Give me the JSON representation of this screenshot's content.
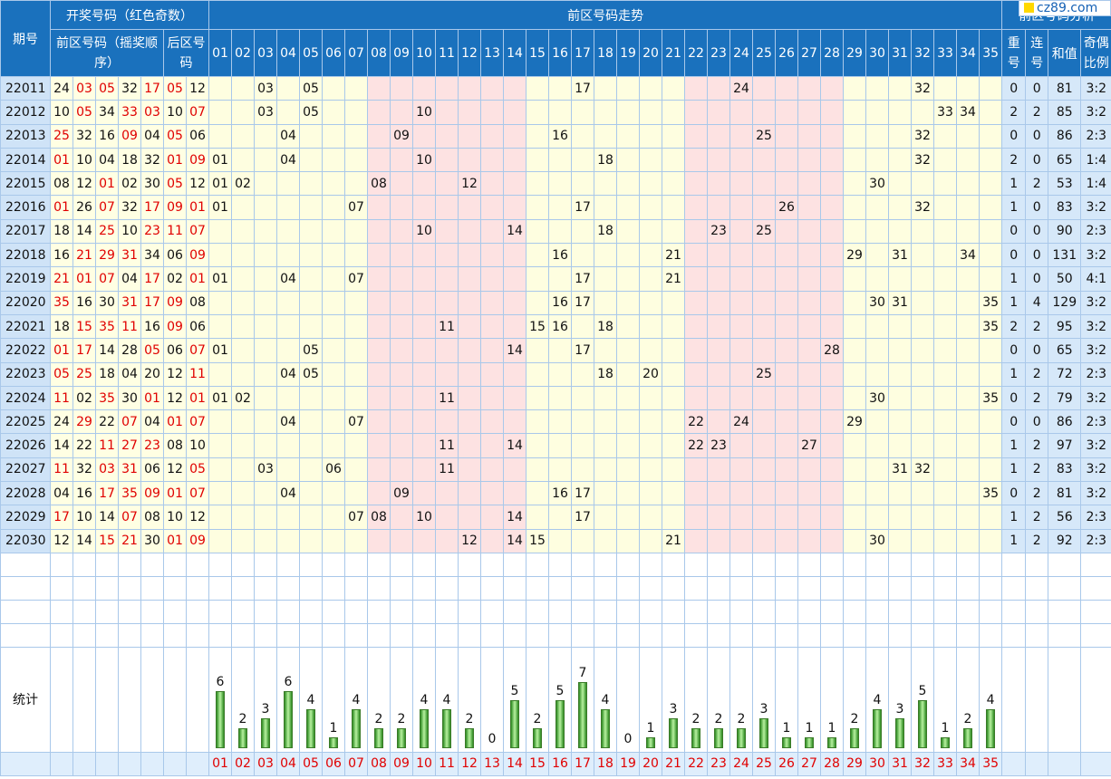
{
  "header": {
    "period": "期号",
    "draw_group": "开奖号码（红色奇数）",
    "front_sub": "前区号码（摇奖顺序）",
    "back_sub": "后区号码",
    "trend": "前区号码走势",
    "analysis": "前区号码分析",
    "repeat": "重号",
    "consecutive": "连号",
    "sum": "和值",
    "odd_even": "奇偶比例"
  },
  "columns": [
    "01",
    "02",
    "03",
    "04",
    "05",
    "06",
    "07",
    "08",
    "09",
    "10",
    "11",
    "12",
    "13",
    "14",
    "15",
    "16",
    "17",
    "18",
    "19",
    "20",
    "21",
    "22",
    "23",
    "24",
    "25",
    "26",
    "27",
    "28",
    "29",
    "30",
    "31",
    "32",
    "33",
    "34",
    "35"
  ],
  "rows": [
    {
      "issue": "22011",
      "front": [
        "24",
        "03",
        "05",
        "32",
        "17"
      ],
      "back": [
        "05",
        "12"
      ],
      "repeat": "0",
      "consec": "0",
      "sum": "81",
      "ratio": "3:2"
    },
    {
      "issue": "22012",
      "front": [
        "10",
        "05",
        "34",
        "33",
        "03"
      ],
      "back": [
        "10",
        "07"
      ],
      "repeat": "2",
      "consec": "2",
      "sum": "85",
      "ratio": "3:2"
    },
    {
      "issue": "22013",
      "front": [
        "25",
        "32",
        "16",
        "09",
        "04"
      ],
      "back": [
        "05",
        "06"
      ],
      "repeat": "0",
      "consec": "0",
      "sum": "86",
      "ratio": "2:3"
    },
    {
      "issue": "22014",
      "front": [
        "01",
        "10",
        "04",
        "18",
        "32"
      ],
      "back": [
        "01",
        "09"
      ],
      "repeat": "2",
      "consec": "0",
      "sum": "65",
      "ratio": "1:4"
    },
    {
      "issue": "22015",
      "front": [
        "08",
        "12",
        "01",
        "02",
        "30"
      ],
      "back": [
        "05",
        "12"
      ],
      "repeat": "1",
      "consec": "2",
      "sum": "53",
      "ratio": "1:4"
    },
    {
      "issue": "22016",
      "front": [
        "01",
        "26",
        "07",
        "32",
        "17"
      ],
      "back": [
        "09",
        "01"
      ],
      "repeat": "1",
      "consec": "0",
      "sum": "83",
      "ratio": "3:2"
    },
    {
      "issue": "22017",
      "front": [
        "18",
        "14",
        "25",
        "10",
        "23"
      ],
      "back": [
        "11",
        "07"
      ],
      "repeat": "0",
      "consec": "0",
      "sum": "90",
      "ratio": "2:3"
    },
    {
      "issue": "22018",
      "front": [
        "16",
        "21",
        "29",
        "31",
        "34"
      ],
      "back": [
        "06",
        "09"
      ],
      "repeat": "0",
      "consec": "0",
      "sum": "131",
      "ratio": "3:2"
    },
    {
      "issue": "22019",
      "front": [
        "21",
        "01",
        "07",
        "04",
        "17"
      ],
      "back": [
        "02",
        "01"
      ],
      "repeat": "1",
      "consec": "0",
      "sum": "50",
      "ratio": "4:1"
    },
    {
      "issue": "22020",
      "front": [
        "35",
        "16",
        "30",
        "31",
        "17"
      ],
      "back": [
        "09",
        "08"
      ],
      "repeat": "1",
      "consec": "4",
      "sum": "129",
      "ratio": "3:2"
    },
    {
      "issue": "22021",
      "front": [
        "18",
        "15",
        "35",
        "11",
        "16"
      ],
      "back": [
        "09",
        "06"
      ],
      "repeat": "2",
      "consec": "2",
      "sum": "95",
      "ratio": "3:2"
    },
    {
      "issue": "22022",
      "front": [
        "01",
        "17",
        "14",
        "28",
        "05"
      ],
      "back": [
        "06",
        "07"
      ],
      "repeat": "0",
      "consec": "0",
      "sum": "65",
      "ratio": "3:2"
    },
    {
      "issue": "22023",
      "front": [
        "05",
        "25",
        "18",
        "04",
        "20"
      ],
      "back": [
        "12",
        "11"
      ],
      "repeat": "1",
      "consec": "2",
      "sum": "72",
      "ratio": "2:3"
    },
    {
      "issue": "22024",
      "front": [
        "11",
        "02",
        "35",
        "30",
        "01"
      ],
      "back": [
        "12",
        "01"
      ],
      "repeat": "0",
      "consec": "2",
      "sum": "79",
      "ratio": "3:2"
    },
    {
      "issue": "22025",
      "front": [
        "24",
        "29",
        "22",
        "07",
        "04"
      ],
      "back": [
        "01",
        "07"
      ],
      "repeat": "0",
      "consec": "0",
      "sum": "86",
      "ratio": "2:3"
    },
    {
      "issue": "22026",
      "front": [
        "14",
        "22",
        "11",
        "27",
        "23"
      ],
      "back": [
        "08",
        "10"
      ],
      "repeat": "1",
      "consec": "2",
      "sum": "97",
      "ratio": "3:2"
    },
    {
      "issue": "22027",
      "front": [
        "11",
        "32",
        "03",
        "31",
        "06"
      ],
      "back": [
        "12",
        "05"
      ],
      "repeat": "1",
      "consec": "2",
      "sum": "83",
      "ratio": "3:2"
    },
    {
      "issue": "22028",
      "front": [
        "04",
        "16",
        "17",
        "35",
        "09"
      ],
      "back": [
        "01",
        "07"
      ],
      "repeat": "0",
      "consec": "2",
      "sum": "81",
      "ratio": "3:2"
    },
    {
      "issue": "22029",
      "front": [
        "17",
        "10",
        "14",
        "07",
        "08"
      ],
      "back": [
        "10",
        "12"
      ],
      "repeat": "1",
      "consec": "2",
      "sum": "56",
      "ratio": "2:3"
    },
    {
      "issue": "22030",
      "front": [
        "12",
        "14",
        "15",
        "21",
        "30"
      ],
      "back": [
        "01",
        "09"
      ],
      "repeat": "1",
      "consec": "2",
      "sum": "92",
      "ratio": "2:3"
    }
  ],
  "stats_label": "统计",
  "chart_data": {
    "type": "bar",
    "categories": [
      "01",
      "02",
      "03",
      "04",
      "05",
      "06",
      "07",
      "08",
      "09",
      "10",
      "11",
      "12",
      "13",
      "14",
      "15",
      "16",
      "17",
      "18",
      "19",
      "20",
      "21",
      "22",
      "23",
      "24",
      "25",
      "26",
      "27",
      "28",
      "29",
      "30",
      "31",
      "32",
      "33",
      "34",
      "35"
    ],
    "values": [
      6,
      2,
      3,
      6,
      4,
      1,
      4,
      2,
      2,
      4,
      4,
      2,
      0,
      5,
      2,
      5,
      7,
      4,
      0,
      1,
      3,
      2,
      2,
      2,
      3,
      1,
      1,
      1,
      2,
      4,
      3,
      5,
      1,
      2,
      4
    ],
    "title": "统计",
    "ylim": [
      0,
      7
    ]
  },
  "logo": {
    "text": "cz89.com",
    "colors": {
      "brand": "#1561b5",
      "square": "#ffd800"
    }
  },
  "colors": {
    "header": "#1a71bd",
    "odd": "#e00000",
    "zone_yellow": "#fefee0",
    "zone_pink": "#fde2e2",
    "bar": "#3fa52d"
  }
}
